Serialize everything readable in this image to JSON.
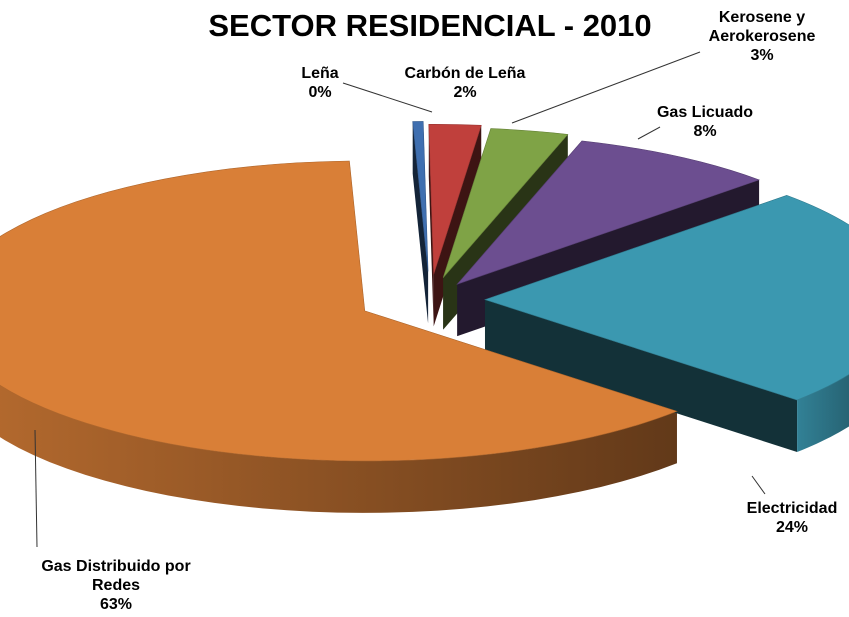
{
  "chart_data": {
    "type": "pie",
    "title": "SECTOR RESIDENCIAL - 2010",
    "three_d": true,
    "exploded": true,
    "slices": [
      {
        "label_lines": [
          "Leña"
        ],
        "percent_label": "0%",
        "value": 0.4,
        "color": "#3f6fb0"
      },
      {
        "label_lines": [
          "Carbón de Leña"
        ],
        "percent_label": "2%",
        "value": 2,
        "color": "#c0403c"
      },
      {
        "label_lines": [
          "Kerosene y",
          "Aerokerosene"
        ],
        "percent_label": "3%",
        "value": 3,
        "color": "#7fa346"
      },
      {
        "label_lines": [
          "Gas Licuado"
        ],
        "percent_label": "8%",
        "value": 8,
        "color": "#6c4e90"
      },
      {
        "label_lines": [
          "Electricidad"
        ],
        "percent_label": "24%",
        "value": 24,
        "color": "#3b98b0"
      },
      {
        "label_lines": [
          "Gas Distribuido por",
          "Redes"
        ],
        "percent_label": "63%",
        "value": 63,
        "color": "#d97f37"
      }
    ]
  }
}
